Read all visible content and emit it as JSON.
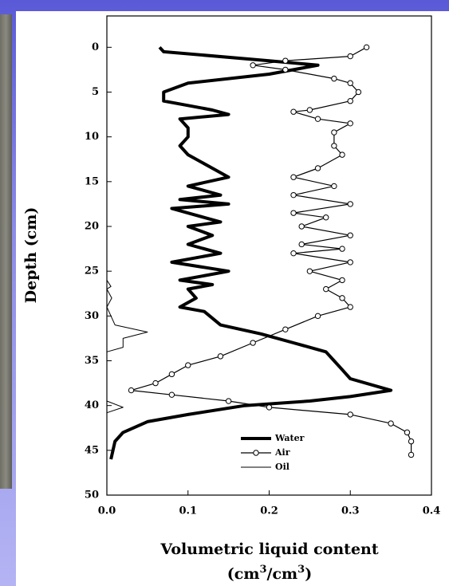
{
  "chart_data": {
    "type": "line",
    "ylabel": "Depth (cm)",
    "xlabel": "Volumetric liquid content",
    "xlabel_units": [
      "(cm",
      "3",
      "/cm",
      "3",
      ")"
    ],
    "xlim": [
      0,
      0.4
    ],
    "xticks": [
      {
        "value": 0,
        "label": "0.0"
      },
      0.1,
      0.2,
      0.3,
      0.4
    ],
    "ylim": [
      50,
      -3.5
    ],
    "yticks": [
      0,
      5,
      10,
      15,
      20,
      25,
      30,
      35,
      40,
      45,
      50
    ],
    "legend": "lower-right",
    "series": [
      {
        "name": "Water",
        "color": "#000000",
        "style": "thick",
        "x": [
          0.065,
          0.07,
          0.2,
          0.26,
          0.2,
          0.1,
          0.07,
          0.07,
          0.1,
          0.13,
          0.15,
          0.09,
          0.1,
          0.1,
          0.09,
          0.1,
          0.13,
          0.15,
          0.1,
          0.14,
          0.09,
          0.15,
          0.08,
          0.12,
          0.14,
          0.1,
          0.13,
          0.1,
          0.14,
          0.08,
          0.15,
          0.09,
          0.13,
          0.1,
          0.11,
          0.09,
          0.12,
          0.14,
          0.19,
          0.23,
          0.27,
          0.28,
          0.29,
          0.3,
          0.35,
          0.3,
          0.25,
          0.17,
          0.1,
          0.05,
          0.02,
          0.01,
          0.005
        ],
        "values": [
          0,
          0.5,
          1.5,
          2,
          3,
          4,
          5,
          6,
          6.5,
          7,
          7.5,
          8,
          9,
          10,
          11,
          12,
          13.5,
          14.5,
          15.5,
          16.5,
          17,
          17.5,
          18,
          19,
          19.5,
          20,
          21,
          22,
          23,
          24,
          25,
          26,
          26.5,
          27,
          28,
          29,
          29.5,
          31,
          32,
          33,
          34,
          35,
          36,
          37,
          38.3,
          39,
          39.5,
          40,
          41,
          41.8,
          43,
          44,
          46
        ]
      },
      {
        "name": "Air",
        "color": "#000000",
        "style": "circles",
        "x": [
          0.32,
          0.3,
          0.22,
          0.18,
          0.22,
          0.28,
          0.3,
          0.31,
          0.3,
          0.25,
          0.23,
          0.26,
          0.3,
          0.28,
          0.28,
          0.29,
          0.26,
          0.23,
          0.28,
          0.23,
          0.3,
          0.23,
          0.27,
          0.24,
          0.3,
          0.24,
          0.29,
          0.23,
          0.3,
          0.25,
          0.29,
          0.27,
          0.29,
          0.3,
          0.26,
          0.22,
          0.18,
          0.14,
          0.1,
          0.08,
          0.06,
          0.03,
          0.08,
          0.15,
          0.2,
          0.3,
          0.35,
          0.37,
          0.375,
          0.375
        ],
        "values": [
          0,
          1,
          1.5,
          2,
          2.5,
          3.5,
          4,
          5,
          6,
          7,
          7.2,
          8,
          8.5,
          9.5,
          11,
          12,
          13.5,
          14.5,
          15.5,
          16.5,
          17.5,
          18.5,
          19,
          20,
          21,
          22,
          22.5,
          23,
          24,
          25,
          26,
          27,
          28,
          29,
          30,
          31.5,
          33,
          34.5,
          35.5,
          36.5,
          37.5,
          38.3,
          38.8,
          39.5,
          40.2,
          41,
          42,
          43,
          44,
          45.5
        ]
      },
      {
        "name": "Oil",
        "color": "#000000",
        "style": "thin",
        "x": [
          0,
          0,
          0.005,
          0,
          0.006,
          0,
          0.01,
          0.05,
          0.02,
          0.02,
          0,
          0,
          0.02,
          0,
          0
        ],
        "values": [
          0,
          26,
          26.7,
          27,
          28,
          29,
          31,
          31.8,
          32.5,
          33.5,
          34,
          39.5,
          40.2,
          40.8,
          46
        ]
      }
    ]
  }
}
